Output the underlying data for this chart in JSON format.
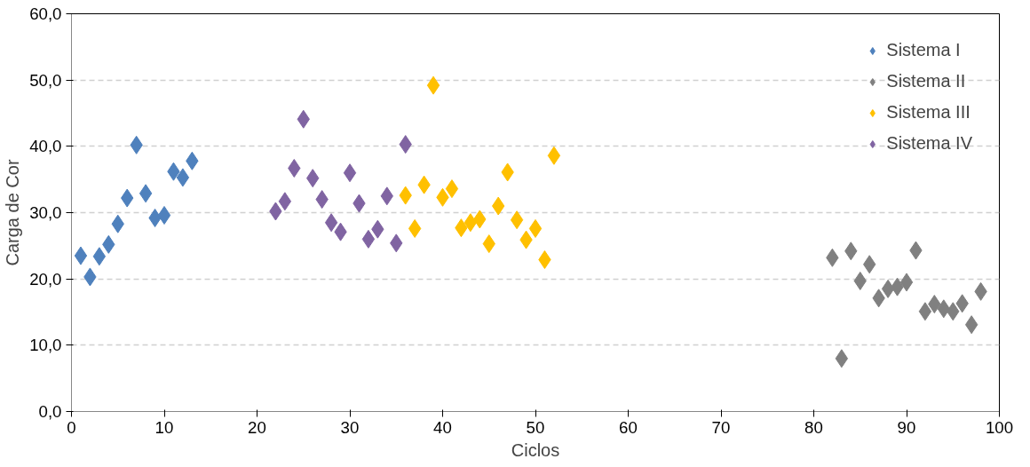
{
  "chart_data": {
    "type": "scatter",
    "xlabel": "Ciclos",
    "ylabel": "Carga de Cor",
    "marker": "diamond",
    "grid": "y",
    "legend": "top right",
    "xlim": [
      0,
      100
    ],
    "xticks": [
      0,
      10,
      20,
      30,
      40,
      50,
      60,
      70,
      80,
      90,
      100
    ],
    "ylim": [
      0,
      60
    ],
    "yticks": [
      {
        "value": 0,
        "label": "0,0"
      },
      {
        "value": 10,
        "label": "10,0"
      },
      {
        "value": 20,
        "label": "20,0"
      },
      {
        "value": 30,
        "label": "30,0"
      },
      {
        "value": 40,
        "label": "40,0"
      },
      {
        "value": 50,
        "label": "50,0"
      },
      {
        "value": 60,
        "label": "60,0"
      }
    ],
    "series": [
      {
        "name": "Sistema I",
        "color": "#4f81bd",
        "x": [
          1,
          2,
          3,
          4,
          5,
          6,
          7,
          8,
          9,
          10,
          11,
          12,
          13
        ],
        "values": [
          23.5,
          20.3,
          23.4,
          25.2,
          28.3,
          32.2,
          40.2,
          32.9,
          29.2,
          29.6,
          36.2,
          35.3,
          37.8
        ]
      },
      {
        "name": "Sistema II",
        "color": "#808080",
        "x": [
          82,
          83,
          84,
          85,
          86,
          87,
          88,
          89,
          90,
          91,
          92,
          93,
          94,
          95,
          96,
          97,
          98
        ],
        "values": [
          23.2,
          8.0,
          24.2,
          19.7,
          22.2,
          17.1,
          18.5,
          18.8,
          19.5,
          24.3,
          15.1,
          16.2,
          15.5,
          15.1,
          16.3,
          13.1,
          18.1
        ]
      },
      {
        "name": "Sistema III",
        "color": "#ffc000",
        "x": [
          36,
          37,
          38,
          39,
          40,
          41,
          42,
          43,
          44,
          45,
          46,
          47,
          48,
          49,
          50,
          51,
          52
        ],
        "values": [
          32.6,
          27.6,
          34.2,
          49.2,
          32.3,
          33.6,
          27.7,
          28.5,
          29.0,
          25.3,
          31.0,
          36.1,
          28.9,
          25.9,
          27.6,
          22.9,
          38.6
        ]
      },
      {
        "name": "Sistema IV",
        "color": "#8064a2",
        "x": [
          22,
          23,
          24,
          25,
          26,
          27,
          28,
          29,
          30,
          31,
          32,
          33,
          34,
          35,
          36
        ],
        "values": [
          30.2,
          31.7,
          36.7,
          44.1,
          35.2,
          32.0,
          28.5,
          27.1,
          36.0,
          31.4,
          26.0,
          27.5,
          32.5,
          25.4,
          40.3
        ]
      }
    ]
  }
}
